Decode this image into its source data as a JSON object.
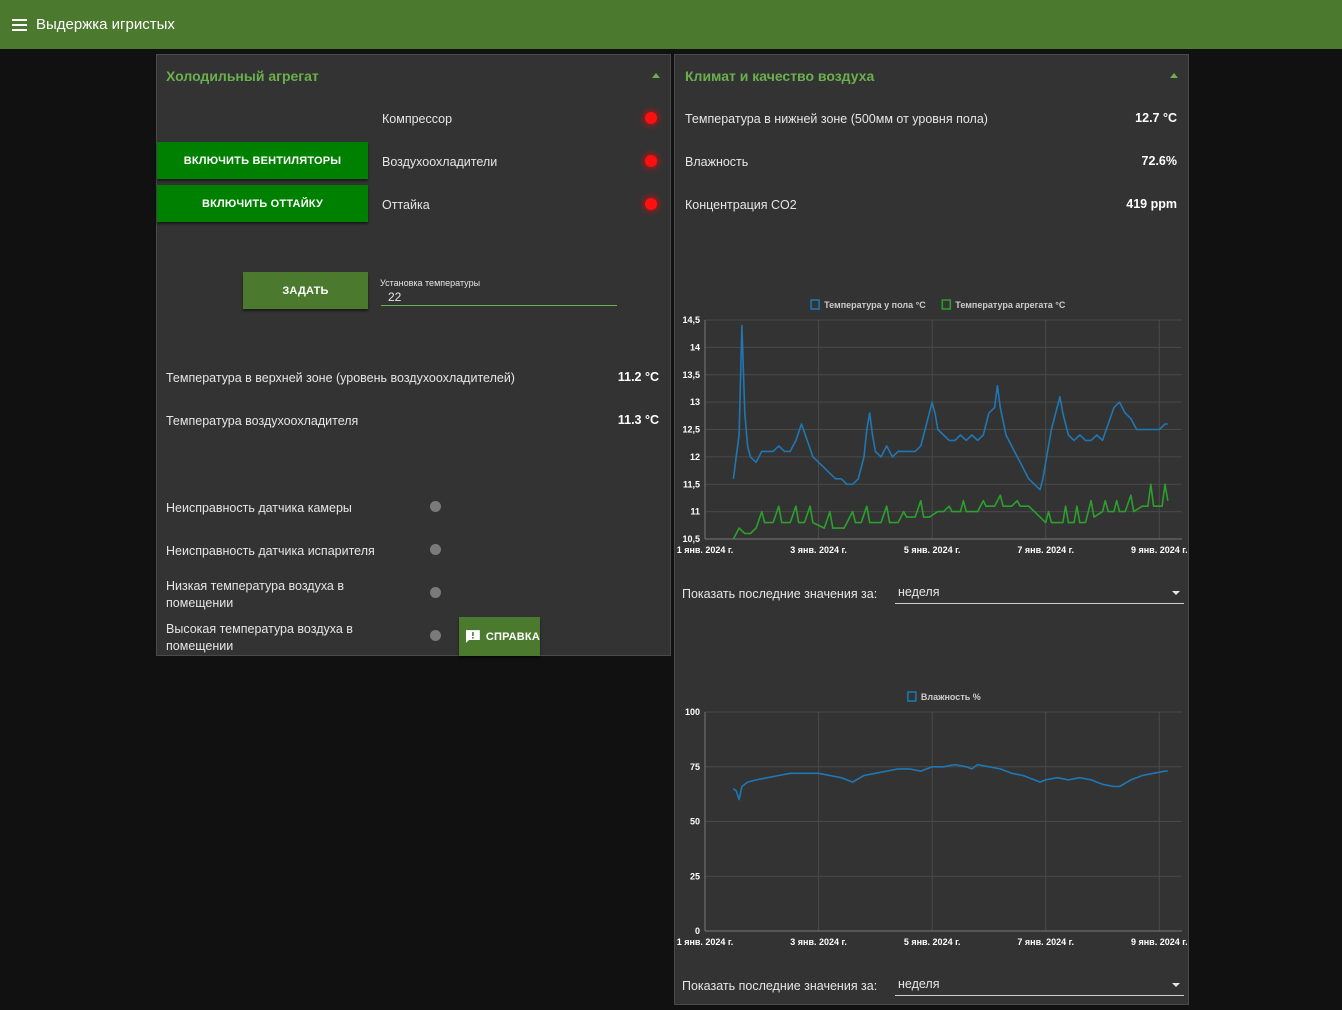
{
  "app": {
    "title": "Выдержка игристых"
  },
  "refrigeration": {
    "title": "Холодильный агрегат",
    "buttons": {
      "fans": "ВКЛЮЧИТЬ ВЕНТИЛЯТОРЫ",
      "defrost": "ВКЛЮЧИТЬ ОТТАЙКУ",
      "set": "ЗАДАТЬ",
      "help": "СПРАВКА"
    },
    "indicators": [
      {
        "label": "Компрессор",
        "color": "#ff1010"
      },
      {
        "label": "Воздухоохладители",
        "color": "#ff1010"
      },
      {
        "label": "Оттайка",
        "color": "#ff1010"
      }
    ],
    "setpoint": {
      "label": "Установка температуры",
      "value": "22"
    },
    "readings": [
      {
        "label": "Температура в верхней зоне (уровень воздухоохладителей)",
        "value": "11.2 °C"
      },
      {
        "label": "Температура воздухоохладителя",
        "value": "11.3 °C"
      }
    ],
    "faults": [
      {
        "label": "Неисправность датчика камеры"
      },
      {
        "label": "Неисправность датчика испарителя"
      },
      {
        "label": "Низкая температура воздуха в помещении"
      },
      {
        "label": "Высокая температура воздуха в помещении"
      }
    ]
  },
  "climate": {
    "title": "Климат и качество воздуха",
    "readings": [
      {
        "label": "Температура в нижней зоне (500мм от уровня пола)",
        "value": "12.7 °C"
      },
      {
        "label": "Влажность",
        "value": "72.6%"
      },
      {
        "label": "Концентрация CO2",
        "value": "419 ppm"
      }
    ],
    "period_label": "Показать последние значения за:",
    "period_value_1": "неделя",
    "period_value_2": "неделя"
  },
  "colors": {
    "accent": "#6ab04c",
    "header": "#4b7a2e",
    "button_green": "#008000",
    "series_blue": "#1f77b4",
    "series_green": "#2ca02c"
  },
  "chart_data": [
    {
      "type": "line",
      "title": "",
      "xlabel": "",
      "ylabel": "",
      "xlim": [
        0,
        8.4
      ],
      "ylim": [
        10.5,
        14.5
      ],
      "x_ticks": [
        0,
        2,
        4,
        6,
        8
      ],
      "x_tick_labels": [
        "1 янв. 2024 г.",
        "3 янв. 2024 г.",
        "5 янв. 2024 г.",
        "7 янв. 2024 г.",
        "9 янв. 2024 г."
      ],
      "y_ticks": [
        10.5,
        11,
        11.5,
        12,
        12.5,
        13,
        13.5,
        14,
        14.5
      ],
      "y_tick_labels": [
        "10,5",
        "11",
        "11,5",
        "12",
        "12,5",
        "13",
        "13,5",
        "14",
        "14,5"
      ],
      "legend_position": "top",
      "grid": true,
      "series": [
        {
          "name": "Температура у пола °C",
          "color": "#1f77b4",
          "points": [
            [
              0.5,
              11.6
            ],
            [
              0.55,
              12.0
            ],
            [
              0.6,
              12.4
            ],
            [
              0.65,
              14.4
            ],
            [
              0.7,
              12.8
            ],
            [
              0.75,
              12.2
            ],
            [
              0.8,
              12.0
            ],
            [
              0.9,
              11.9
            ],
            [
              1.0,
              12.1
            ],
            [
              1.1,
              12.1
            ],
            [
              1.2,
              12.1
            ],
            [
              1.3,
              12.2
            ],
            [
              1.4,
              12.1
            ],
            [
              1.5,
              12.1
            ],
            [
              1.6,
              12.3
            ],
            [
              1.7,
              12.6
            ],
            [
              1.8,
              12.3
            ],
            [
              1.9,
              12.0
            ],
            [
              2.0,
              11.9
            ],
            [
              2.1,
              11.8
            ],
            [
              2.2,
              11.7
            ],
            [
              2.3,
              11.6
            ],
            [
              2.4,
              11.6
            ],
            [
              2.5,
              11.5
            ],
            [
              2.6,
              11.5
            ],
            [
              2.7,
              11.6
            ],
            [
              2.8,
              12.0
            ],
            [
              2.85,
              12.5
            ],
            [
              2.9,
              12.8
            ],
            [
              2.95,
              12.4
            ],
            [
              3.0,
              12.1
            ],
            [
              3.1,
              12.0
            ],
            [
              3.2,
              12.2
            ],
            [
              3.3,
              12.0
            ],
            [
              3.4,
              12.1
            ],
            [
              3.5,
              12.1
            ],
            [
              3.6,
              12.1
            ],
            [
              3.7,
              12.1
            ],
            [
              3.8,
              12.2
            ],
            [
              3.9,
              12.6
            ],
            [
              4.0,
              13.0
            ],
            [
              4.05,
              12.8
            ],
            [
              4.1,
              12.5
            ],
            [
              4.2,
              12.4
            ],
            [
              4.3,
              12.3
            ],
            [
              4.4,
              12.3
            ],
            [
              4.5,
              12.4
            ],
            [
              4.6,
              12.3
            ],
            [
              4.7,
              12.4
            ],
            [
              4.8,
              12.3
            ],
            [
              4.9,
              12.4
            ],
            [
              5.0,
              12.8
            ],
            [
              5.1,
              12.9
            ],
            [
              5.15,
              13.3
            ],
            [
              5.2,
              12.9
            ],
            [
              5.3,
              12.4
            ],
            [
              5.4,
              12.2
            ],
            [
              5.5,
              12.0
            ],
            [
              5.6,
              11.8
            ],
            [
              5.7,
              11.6
            ],
            [
              5.8,
              11.5
            ],
            [
              5.9,
              11.4
            ],
            [
              5.95,
              11.6
            ],
            [
              6.0,
              11.9
            ],
            [
              6.1,
              12.5
            ],
            [
              6.2,
              12.9
            ],
            [
              6.25,
              13.1
            ],
            [
              6.3,
              12.8
            ],
            [
              6.4,
              12.4
            ],
            [
              6.5,
              12.3
            ],
            [
              6.6,
              12.4
            ],
            [
              6.7,
              12.3
            ],
            [
              6.8,
              12.3
            ],
            [
              6.9,
              12.4
            ],
            [
              7.0,
              12.3
            ],
            [
              7.1,
              12.6
            ],
            [
              7.2,
              12.9
            ],
            [
              7.3,
              13.0
            ],
            [
              7.4,
              12.8
            ],
            [
              7.5,
              12.7
            ],
            [
              7.6,
              12.5
            ],
            [
              7.7,
              12.5
            ],
            [
              7.8,
              12.5
            ],
            [
              7.9,
              12.5
            ],
            [
              8.0,
              12.5
            ],
            [
              8.1,
              12.6
            ],
            [
              8.15,
              12.6
            ]
          ]
        },
        {
          "name": "Температура агрегата °C",
          "color": "#2ca02c",
          "points": [
            [
              0.5,
              10.5
            ],
            [
              0.6,
              10.7
            ],
            [
              0.7,
              10.6
            ],
            [
              0.8,
              10.6
            ],
            [
              0.9,
              10.7
            ],
            [
              1.0,
              11.0
            ],
            [
              1.05,
              10.8
            ],
            [
              1.1,
              10.8
            ],
            [
              1.2,
              10.8
            ],
            [
              1.3,
              11.1
            ],
            [
              1.35,
              10.8
            ],
            [
              1.5,
              10.8
            ],
            [
              1.6,
              11.1
            ],
            [
              1.65,
              10.8
            ],
            [
              1.75,
              10.8
            ],
            [
              1.85,
              11.1
            ],
            [
              1.9,
              10.8
            ],
            [
              2.1,
              10.7
            ],
            [
              2.2,
              11.0
            ],
            [
              2.25,
              10.7
            ],
            [
              2.45,
              10.7
            ],
            [
              2.6,
              11.0
            ],
            [
              2.65,
              10.8
            ],
            [
              2.75,
              10.8
            ],
            [
              2.85,
              11.1
            ],
            [
              2.9,
              10.8
            ],
            [
              3.1,
              10.8
            ],
            [
              3.2,
              11.1
            ],
            [
              3.25,
              10.8
            ],
            [
              3.4,
              10.8
            ],
            [
              3.5,
              11.0
            ],
            [
              3.55,
              10.9
            ],
            [
              3.7,
              10.9
            ],
            [
              3.8,
              11.2
            ],
            [
              3.85,
              10.9
            ],
            [
              3.95,
              10.9
            ],
            [
              4.1,
              11.0
            ],
            [
              4.2,
              11.0
            ],
            [
              4.3,
              11.1
            ],
            [
              4.35,
              11.0
            ],
            [
              4.5,
              11.0
            ],
            [
              4.55,
              11.2
            ],
            [
              4.6,
              11.0
            ],
            [
              4.8,
              11.0
            ],
            [
              4.9,
              11.2
            ],
            [
              4.95,
              11.1
            ],
            [
              5.1,
              11.1
            ],
            [
              5.2,
              11.3
            ],
            [
              5.25,
              11.1
            ],
            [
              5.4,
              11.1
            ],
            [
              5.5,
              11.2
            ],
            [
              5.55,
              11.1
            ],
            [
              5.7,
              11.1
            ],
            [
              5.8,
              11.0
            ],
            [
              5.9,
              10.9
            ],
            [
              6.0,
              10.8
            ],
            [
              6.05,
              11.0
            ],
            [
              6.1,
              10.8
            ],
            [
              6.3,
              10.8
            ],
            [
              6.35,
              11.1
            ],
            [
              6.4,
              10.8
            ],
            [
              6.5,
              10.8
            ],
            [
              6.55,
              11.1
            ],
            [
              6.6,
              10.8
            ],
            [
              6.7,
              10.8
            ],
            [
              6.8,
              11.2
            ],
            [
              6.85,
              10.9
            ],
            [
              7.0,
              11.0
            ],
            [
              7.05,
              11.2
            ],
            [
              7.1,
              11.0
            ],
            [
              7.2,
              11.0
            ],
            [
              7.25,
              11.2
            ],
            [
              7.3,
              11.0
            ],
            [
              7.4,
              11.0
            ],
            [
              7.5,
              11.3
            ],
            [
              7.55,
              11.0
            ],
            [
              7.7,
              11.1
            ],
            [
              7.8,
              11.1
            ],
            [
              7.85,
              11.5
            ],
            [
              7.9,
              11.1
            ],
            [
              8.0,
              11.1
            ],
            [
              8.05,
              11.1
            ],
            [
              8.1,
              11.5
            ],
            [
              8.15,
              11.2
            ]
          ]
        }
      ]
    },
    {
      "type": "line",
      "title": "",
      "xlabel": "",
      "ylabel": "",
      "xlim": [
        0,
        8.4
      ],
      "ylim": [
        0,
        100
      ],
      "x_ticks": [
        0,
        2,
        4,
        6,
        8
      ],
      "x_tick_labels": [
        "1 янв. 2024 г.",
        "3 янв. 2024 г.",
        "5 янв. 2024 г.",
        "7 янв. 2024 г.",
        "9 янв. 2024 г."
      ],
      "y_ticks": [
        0,
        25,
        50,
        75,
        100
      ],
      "y_tick_labels": [
        "0",
        "25",
        "50",
        "75",
        "100"
      ],
      "legend_position": "top",
      "grid": true,
      "series": [
        {
          "name": "Влажность %",
          "color": "#1f77b4",
          "points": [
            [
              0.5,
              65
            ],
            [
              0.55,
              64
            ],
            [
              0.6,
              60
            ],
            [
              0.65,
              66
            ],
            [
              0.75,
              68
            ],
            [
              0.9,
              69
            ],
            [
              1.1,
              70
            ],
            [
              1.3,
              71
            ],
            [
              1.5,
              72
            ],
            [
              1.6,
              72
            ],
            [
              1.8,
              72
            ],
            [
              2.0,
              72
            ],
            [
              2.2,
              71
            ],
            [
              2.4,
              70
            ],
            [
              2.5,
              69
            ],
            [
              2.6,
              68
            ],
            [
              2.8,
              71
            ],
            [
              3.0,
              72
            ],
            [
              3.2,
              73
            ],
            [
              3.4,
              74
            ],
            [
              3.6,
              74
            ],
            [
              3.8,
              73
            ],
            [
              4.0,
              75
            ],
            [
              4.2,
              75
            ],
            [
              4.4,
              76
            ],
            [
              4.6,
              75
            ],
            [
              4.7,
              74
            ],
            [
              4.8,
              76
            ],
            [
              5.0,
              75
            ],
            [
              5.2,
              74
            ],
            [
              5.4,
              72
            ],
            [
              5.6,
              71
            ],
            [
              5.8,
              69
            ],
            [
              5.9,
              68
            ],
            [
              6.0,
              69
            ],
            [
              6.2,
              70
            ],
            [
              6.4,
              69
            ],
            [
              6.6,
              70
            ],
            [
              6.8,
              69
            ],
            [
              7.0,
              67
            ],
            [
              7.2,
              66
            ],
            [
              7.3,
              66
            ],
            [
              7.5,
              69
            ],
            [
              7.7,
              71
            ],
            [
              7.9,
              72
            ],
            [
              8.1,
              73
            ],
            [
              8.15,
              73
            ]
          ]
        }
      ]
    }
  ]
}
